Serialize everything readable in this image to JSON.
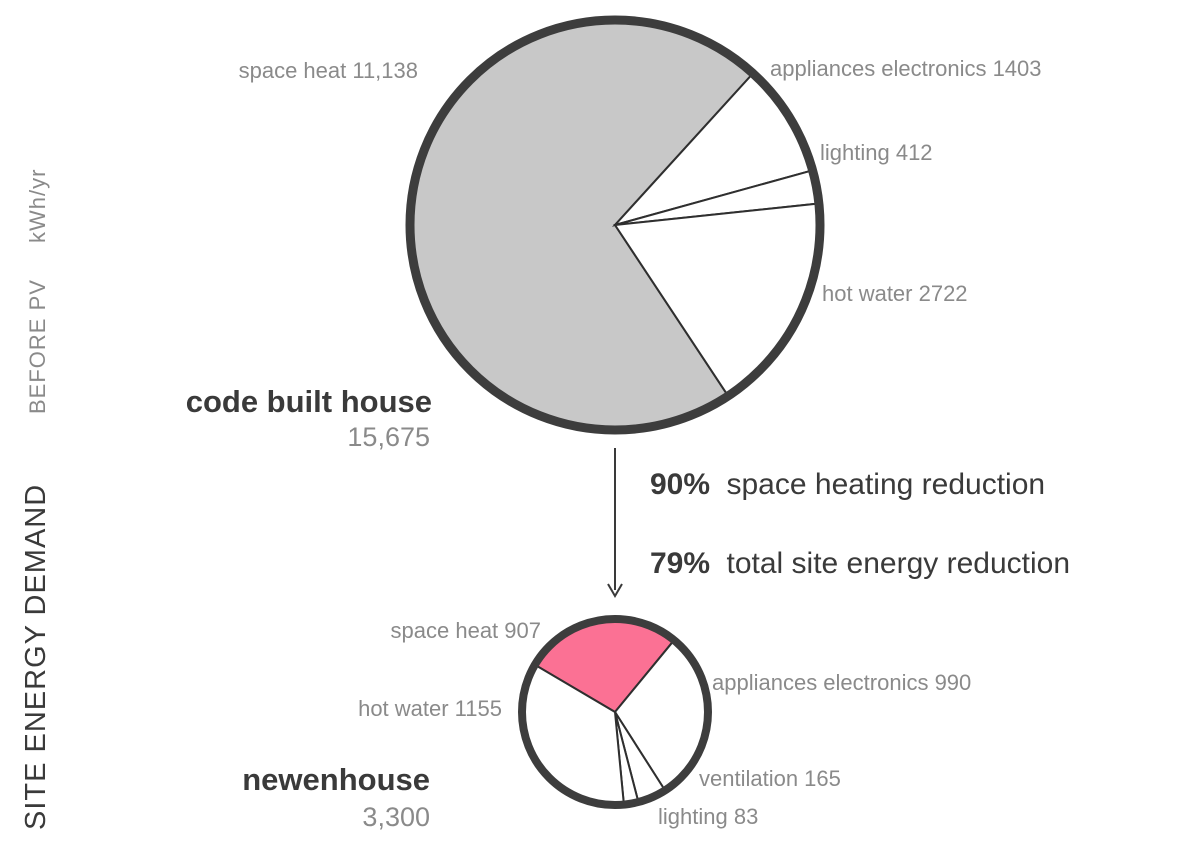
{
  "side_title": "SITE ENERGY DEMAND",
  "side_subtitle": "BEFORE PV",
  "side_unit": "kWh/yr",
  "chart_data": [
    {
      "type": "pie",
      "name": "code built house",
      "total": "15,675",
      "slices": [
        {
          "label": "space heat 11,138",
          "value": 11138,
          "color": "#c8c8c8"
        },
        {
          "label": "appliances electronics 1403",
          "value": 1403,
          "color": "#ffffff"
        },
        {
          "label": "lighting 412",
          "value": 412,
          "color": "#ffffff"
        },
        {
          "label": "hot water 2722",
          "value": 2722,
          "color": "#ffffff"
        }
      ]
    },
    {
      "type": "pie",
      "name": "newenhouse",
      "total": "3,300",
      "slices": [
        {
          "label": "space heat 907",
          "value": 907,
          "color": "#fb7194"
        },
        {
          "label": "appliances electronics 990",
          "value": 990,
          "color": "#ffffff"
        },
        {
          "label": "ventilation 165",
          "value": 165,
          "color": "#ffffff"
        },
        {
          "label": "lighting 83",
          "value": 83,
          "color": "#ffffff"
        },
        {
          "label": "hot water 1155",
          "value": 1155,
          "color": "#ffffff"
        }
      ]
    }
  ],
  "reductions": [
    {
      "pct": "90%",
      "text": "space heating reduction"
    },
    {
      "pct": "79%",
      "text": "total site energy reduction"
    }
  ]
}
